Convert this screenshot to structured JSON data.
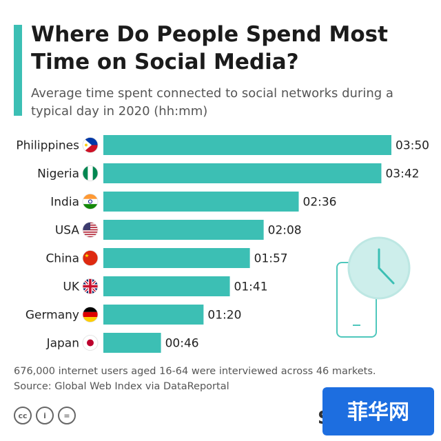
{
  "title": "Where Do People Spend Most Time on Social Media?",
  "subtitle": "Average time spent connected to social networks during a typical day in 2020 (hh:mm)",
  "note_lines": [
    "676,000 internet users aged 16-64 were interviewed across 46 markets.",
    "Source: Global Web Index via DataReportal"
  ],
  "license_icons": [
    "creative-commons",
    "attribution",
    "no-derivatives"
  ],
  "license_glyphs": [
    "cc",
    "i",
    "="
  ],
  "brand_letter": "S",
  "watermark_text": "菲华网",
  "colors": {
    "accent": "#3cbfb4",
    "bar": "#3cbfb4",
    "text": "#222222",
    "muted": "#555555",
    "watermark_bg": "#1d6ee0"
  },
  "chart_data": {
    "type": "bar",
    "orientation": "horizontal",
    "unit": "hh:mm",
    "categories": [
      "Philippines",
      "Nigeria",
      "India",
      "USA",
      "China",
      "UK",
      "Germany",
      "Japan"
    ],
    "values": [
      "03:50",
      "03:42",
      "02:36",
      "02:08",
      "01:57",
      "01:41",
      "01:20",
      "00:46"
    ],
    "values_minutes": [
      230,
      222,
      156,
      128,
      117,
      101,
      80,
      46
    ],
    "flags": [
      "philippines-flag",
      "nigeria-flag",
      "india-flag",
      "usa-flag",
      "china-flag",
      "uk-flag",
      "germany-flag",
      "japan-flag"
    ],
    "grid": false,
    "legend": "none"
  }
}
